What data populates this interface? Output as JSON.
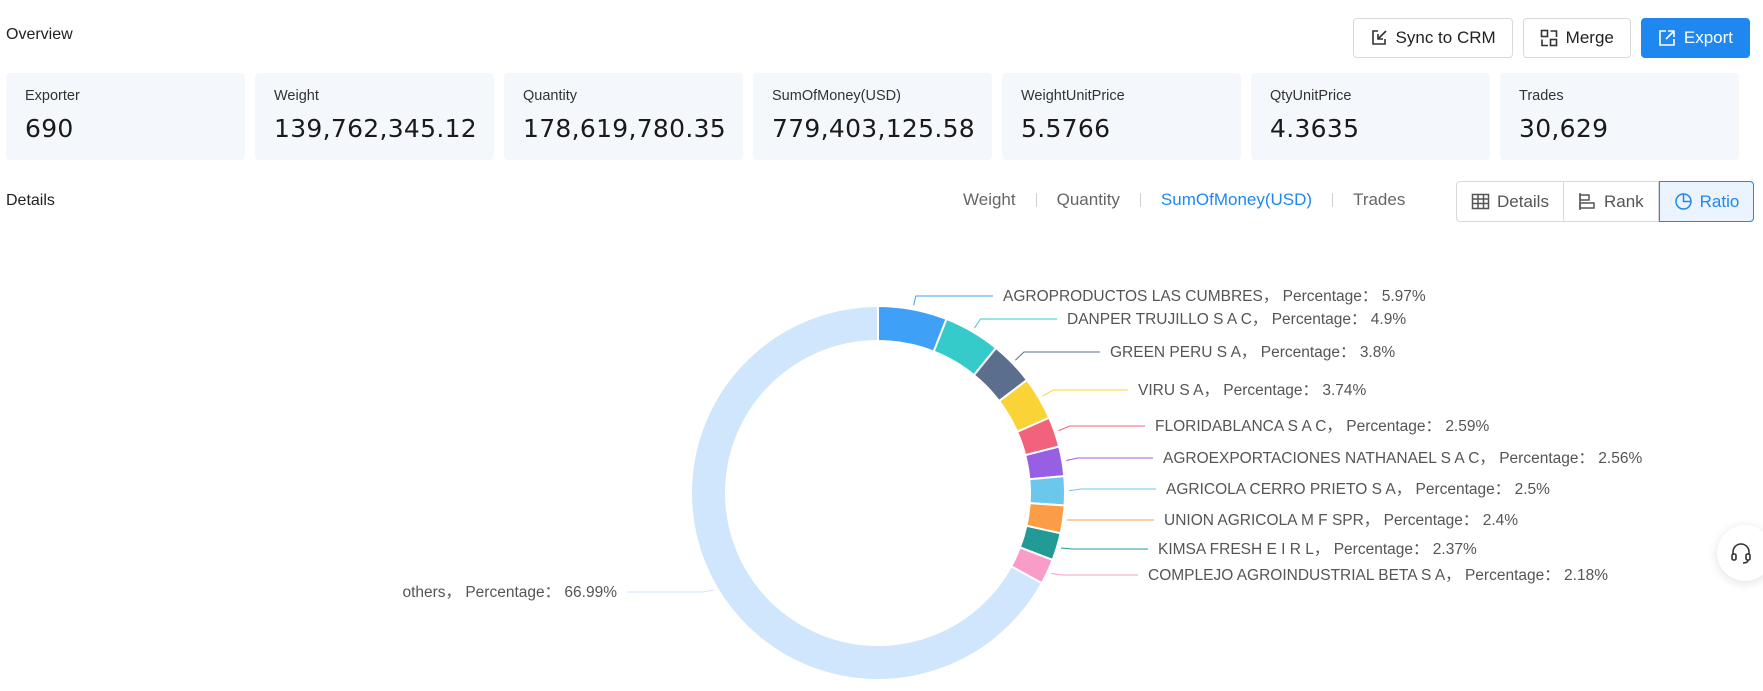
{
  "overview": {
    "title": "Overview",
    "actions": {
      "sync_label": "Sync to CRM",
      "merge_label": "Merge",
      "export_label": "Export"
    },
    "stats": [
      {
        "label": "Exporter",
        "value": "690"
      },
      {
        "label": "Weight",
        "value": "139,762,345.12"
      },
      {
        "label": "Quantity",
        "value": "178,619,780.35"
      },
      {
        "label": "SumOfMoney(USD)",
        "value": "779,403,125.58"
      },
      {
        "label": "WeightUnitPrice",
        "value": "5.5766"
      },
      {
        "label": "QtyUnitPrice",
        "value": "4.3635"
      },
      {
        "label": "Trades",
        "value": "30,629"
      }
    ]
  },
  "details": {
    "title": "Details",
    "metric_tabs": [
      "Weight",
      "Quantity",
      "SumOfMoney(USD)",
      "Trades"
    ],
    "active_metric": "SumOfMoney(USD)",
    "views": [
      "Details",
      "Rank",
      "Ratio"
    ],
    "active_view": "Ratio"
  },
  "icons": {
    "sync": "sync-crm-icon",
    "merge": "merge-icon",
    "export": "export-icon",
    "details": "table-icon",
    "rank": "bar-rank-icon",
    "ratio": "pie-icon",
    "help": "headset-icon"
  },
  "chart_data": {
    "type": "pie",
    "variant": "donut",
    "label_format": "{name}， Percentage： {value}%",
    "slices": [
      {
        "name": "AGROPRODUCTOS LAS CUMBRES",
        "value": 5.97,
        "color": "#3fa0f8"
      },
      {
        "name": "DANPER TRUJILLO S A C",
        "value": 4.9,
        "color": "#36cbcb"
      },
      {
        "name": "GREEN PERU S A",
        "value": 3.8,
        "color": "#5b6e8e"
      },
      {
        "name": "VIRU S A",
        "value": 3.74,
        "color": "#fad337"
      },
      {
        "name": "FLORIDABLANCA S A C",
        "value": 2.59,
        "color": "#f2637b"
      },
      {
        "name": "AGROEXPORTACIONES NATHANAEL S A C",
        "value": 2.56,
        "color": "#975fe4"
      },
      {
        "name": "AGRICOLA CERRO PRIETO S A",
        "value": 2.5,
        "color": "#6cc7ed"
      },
      {
        "name": "UNION AGRICOLA M F SPR",
        "value": 2.4,
        "color": "#fb9c47"
      },
      {
        "name": "KIMSA FRESH E I R L",
        "value": 2.37,
        "color": "#229a96"
      },
      {
        "name": "COMPLEJO AGROINDUSTRIAL BETA S A",
        "value": 2.18,
        "color": "#f99cc8"
      },
      {
        "name": "others",
        "value": 66.99,
        "color": "#cfe6fc"
      }
    ]
  }
}
